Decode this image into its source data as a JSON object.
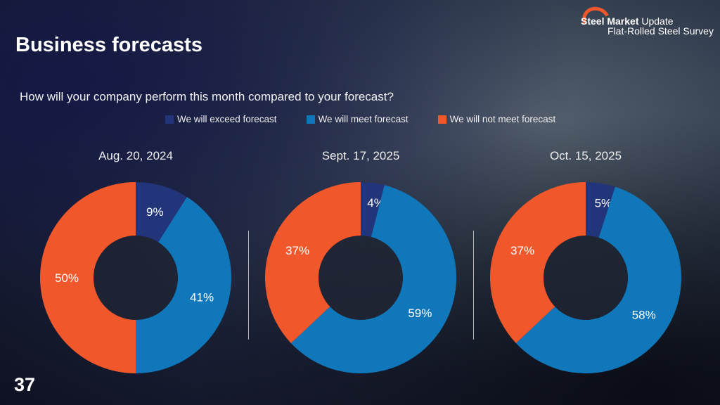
{
  "header": {
    "title": "Business forecasts",
    "logo_line1_bold": "Steel Market",
    "logo_line1_light": "Update",
    "logo_line2": "Flat-Rolled Steel Survey"
  },
  "question": "How will your company perform this month compared to your forecast?",
  "page_number": "37",
  "colors": {
    "exceed": "#22347a",
    "meet": "#1077bb",
    "not_meet": "#f0572a"
  },
  "chart_data": [
    {
      "type": "pie",
      "donut": true,
      "title": "Aug. 20, 2024",
      "categories": [
        "We will exceed forecast",
        "We will meet forecast",
        "We will not meet forecast"
      ],
      "values": [
        9,
        41,
        50
      ],
      "labels": [
        "9%",
        "41%",
        "50%"
      ]
    },
    {
      "type": "pie",
      "donut": true,
      "title": "Sept. 17, 2025",
      "categories": [
        "We will exceed forecast",
        "We will meet forecast",
        "We will not meet forecast"
      ],
      "values": [
        4,
        59,
        37
      ],
      "labels": [
        "4%",
        "59%",
        "37%"
      ]
    },
    {
      "type": "pie",
      "donut": true,
      "title": "Oct. 15, 2025",
      "categories": [
        "We will exceed forecast",
        "We will meet forecast",
        "We will not meet forecast"
      ],
      "values": [
        5,
        58,
        37
      ],
      "labels": [
        "5%",
        "58%",
        "37%"
      ]
    }
  ],
  "legend": [
    "We will exceed forecast",
    "We will meet forecast",
    "We will not meet forecast"
  ]
}
